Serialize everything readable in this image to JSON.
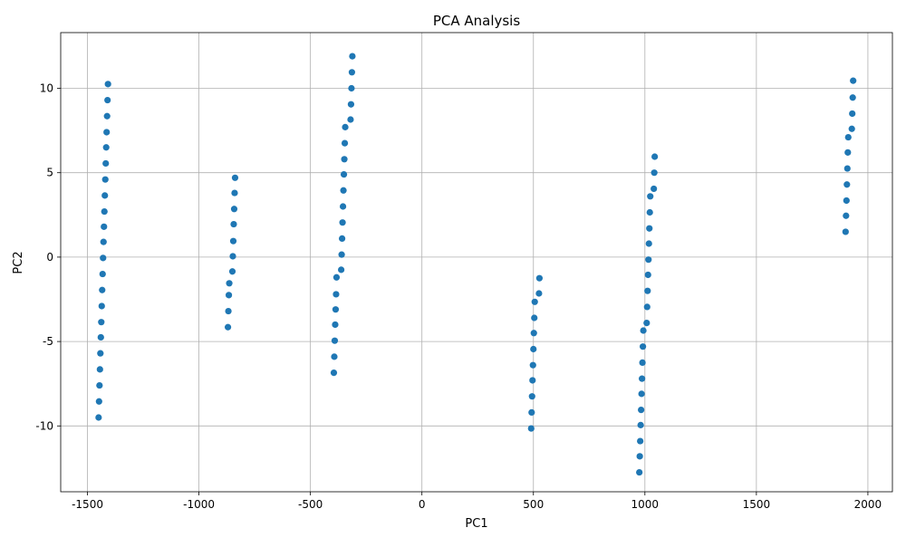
{
  "chart_data": {
    "type": "scatter",
    "title": "PCA Analysis",
    "xlabel": "PC1",
    "ylabel": "PC2",
    "xlim": [
      -1620,
      2110
    ],
    "ylim": [
      -13.9,
      13.3
    ],
    "xticks": [
      -1500,
      -1000,
      -500,
      0,
      500,
      1000,
      1500,
      2000
    ],
    "yticks": [
      -10,
      -5,
      0,
      5,
      10
    ],
    "grid": true,
    "marker_color": "#1f77b4",
    "series": [
      {
        "values": [
          [
            -1450,
            -9.5
          ],
          [
            -1448,
            -8.55
          ],
          [
            -1446,
            -7.6
          ],
          [
            -1444,
            -6.65
          ],
          [
            -1442,
            -5.7
          ],
          [
            -1440,
            -4.75
          ],
          [
            -1438,
            -3.85
          ],
          [
            -1436,
            -2.9
          ],
          [
            -1434,
            -1.95
          ],
          [
            -1432,
            -1.0
          ],
          [
            -1430,
            -0.05
          ],
          [
            -1428,
            0.9
          ],
          [
            -1426,
            1.8
          ],
          [
            -1424,
            2.7
          ],
          [
            -1422,
            3.65
          ],
          [
            -1420,
            4.6
          ],
          [
            -1418,
            5.55
          ],
          [
            -1416,
            6.5
          ],
          [
            -1414,
            7.4
          ],
          [
            -1412,
            8.35
          ],
          [
            -1410,
            9.3
          ],
          [
            -1408,
            10.25
          ],
          [
            -870,
            -4.15
          ],
          [
            -868,
            -3.2
          ],
          [
            -866,
            -2.25
          ],
          [
            -864,
            -1.55
          ],
          [
            -850,
            -0.85
          ],
          [
            -848,
            0.05
          ],
          [
            -846,
            0.95
          ],
          [
            -844,
            1.95
          ],
          [
            -842,
            2.85
          ],
          [
            -840,
            3.8
          ],
          [
            -838,
            4.7
          ],
          [
            -395,
            -6.85
          ],
          [
            -393,
            -5.9
          ],
          [
            -391,
            -4.95
          ],
          [
            -389,
            -4.0
          ],
          [
            -387,
            -3.1
          ],
          [
            -385,
            -2.2
          ],
          [
            -383,
            -1.2
          ],
          [
            -362,
            -0.75
          ],
          [
            -360,
            0.15
          ],
          [
            -358,
            1.1
          ],
          [
            -356,
            2.05
          ],
          [
            -354,
            3.0
          ],
          [
            -352,
            3.95
          ],
          [
            -350,
            4.9
          ],
          [
            -348,
            5.8
          ],
          [
            -346,
            6.75
          ],
          [
            -344,
            7.7
          ],
          [
            -320,
            8.15
          ],
          [
            -318,
            9.05
          ],
          [
            -316,
            10.0
          ],
          [
            -314,
            10.95
          ],
          [
            -312,
            11.9
          ],
          [
            490,
            -10.15
          ],
          [
            492,
            -9.2
          ],
          [
            494,
            -8.25
          ],
          [
            496,
            -7.3
          ],
          [
            498,
            -6.4
          ],
          [
            500,
            -5.45
          ],
          [
            502,
            -4.5
          ],
          [
            504,
            -3.6
          ],
          [
            506,
            -2.65
          ],
          [
            525,
            -2.15
          ],
          [
            527,
            -1.25
          ],
          [
            975,
            -12.75
          ],
          [
            977,
            -11.8
          ],
          [
            979,
            -10.9
          ],
          [
            981,
            -9.95
          ],
          [
            983,
            -9.05
          ],
          [
            985,
            -8.1
          ],
          [
            987,
            -7.2
          ],
          [
            989,
            -6.25
          ],
          [
            991,
            -5.3
          ],
          [
            993,
            -4.35
          ],
          [
            1008,
            -3.9
          ],
          [
            1010,
            -2.95
          ],
          [
            1012,
            -2.0
          ],
          [
            1014,
            -1.05
          ],
          [
            1016,
            -0.15
          ],
          [
            1018,
            0.8
          ],
          [
            1020,
            1.7
          ],
          [
            1022,
            2.65
          ],
          [
            1024,
            3.6
          ],
          [
            1040,
            4.05
          ],
          [
            1042,
            5.0
          ],
          [
            1044,
            5.95
          ],
          [
            1900,
            1.5
          ],
          [
            1902,
            2.45
          ],
          [
            1904,
            3.35
          ],
          [
            1906,
            4.3
          ],
          [
            1908,
            5.25
          ],
          [
            1910,
            6.2
          ],
          [
            1912,
            7.1
          ],
          [
            1928,
            7.6
          ],
          [
            1930,
            8.5
          ],
          [
            1932,
            9.45
          ],
          [
            1934,
            10.45
          ]
        ]
      }
    ]
  }
}
